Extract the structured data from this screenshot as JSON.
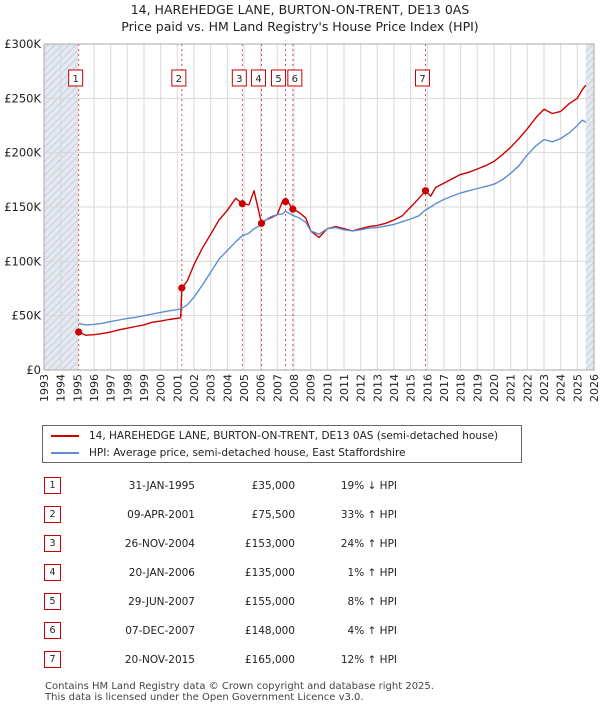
{
  "header": {
    "line1": "14, HAREHEDGE LANE, BURTON-ON-TRENT, DE13 0AS",
    "line2": "Price paid vs. HM Land Registry's House Price Index (HPI)"
  },
  "colors": {
    "property": "#cc0000",
    "hpi": "#5b8fd0",
    "shade": "#e4e8f0",
    "grid": "#d9d9d9"
  },
  "chart_data": {
    "type": "line",
    "title": "Price paid vs. HM Land Registry's House Price Index (HPI)",
    "xlabel": "",
    "ylabel": "",
    "xlim": [
      1993,
      2026
    ],
    "ylim": [
      0,
      300000
    ],
    "shaded_x_ranges": [
      [
        1993,
        1995
      ],
      [
        2025.5,
        2026
      ]
    ],
    "y_ticks": [
      {
        "value": 0,
        "label": "£0"
      },
      {
        "value": 50000,
        "label": "£50K"
      },
      {
        "value": 100000,
        "label": "£100K"
      },
      {
        "value": 150000,
        "label": "£150K"
      },
      {
        "value": 200000,
        "label": "£200K"
      },
      {
        "value": 250000,
        "label": "£250K"
      },
      {
        "value": 300000,
        "label": "£300K"
      }
    ],
    "x_ticks": [
      "1993",
      "1994",
      "1995",
      "1996",
      "1997",
      "1998",
      "1999",
      "2000",
      "2001",
      "2002",
      "2003",
      "2004",
      "2005",
      "2006",
      "2007",
      "2008",
      "2009",
      "2010",
      "2011",
      "2012",
      "2013",
      "2014",
      "2015",
      "2016",
      "2017",
      "2018",
      "2019",
      "2020",
      "2021",
      "2022",
      "2023",
      "2024",
      "2025",
      "2026"
    ],
    "series": [
      {
        "name": "14, HAREHEDGE LANE, BURTON-ON-TRENT, DE13 0AS (semi-detached house)",
        "color": "#cc0000",
        "x": [
          1995.08,
          1995.5,
          1996,
          1996.5,
          1997,
          1997.5,
          1998,
          1998.5,
          1999,
          1999.5,
          2000,
          2000.5,
          2001.2,
          2001.27,
          2001.6,
          2002,
          2002.5,
          2003,
          2003.5,
          2004,
          2004.5,
          2004.9,
          2005.3,
          2005.6,
          2006.05,
          2006.3,
          2006.6,
          2007,
          2007.3,
          2007.5,
          2007.93,
          2008.3,
          2008.7,
          2009,
          2009.5,
          2010,
          2010.5,
          2011,
          2011.5,
          2012,
          2012.5,
          2013,
          2013.5,
          2014,
          2014.5,
          2015,
          2015.5,
          2015.89,
          2016.2,
          2016.5,
          2017,
          2017.5,
          2018,
          2018.5,
          2019,
          2019.5,
          2020,
          2020.5,
          2021,
          2021.5,
          2022,
          2022.5,
          2023,
          2023.5,
          2024,
          2024.5,
          2025,
          2025.3,
          2025.5
        ],
        "values": [
          35000,
          32000,
          32500,
          33500,
          35000,
          37000,
          38500,
          40000,
          41500,
          44000,
          45000,
          46500,
          48000,
          75500,
          82000,
          97000,
          112000,
          125000,
          138000,
          147000,
          158000,
          153000,
          152000,
          165000,
          135000,
          138000,
          140000,
          143000,
          155000,
          158000,
          148000,
          145000,
          140000,
          128000,
          122000,
          130000,
          132000,
          130000,
          128000,
          130000,
          132000,
          133000,
          135000,
          138000,
          142000,
          150000,
          158000,
          165000,
          160000,
          168000,
          172000,
          176000,
          180000,
          182000,
          185000,
          188000,
          192000,
          198000,
          205000,
          213000,
          222000,
          232000,
          240000,
          236000,
          238000,
          245000,
          250000,
          258000,
          262000
        ]
      },
      {
        "name": "HPI: Average price, semi-detached house, East Staffordshire",
        "color": "#5b8fd0",
        "x": [
          1995.08,
          1995.5,
          1996,
          1996.5,
          1997,
          1997.5,
          1998,
          1998.5,
          1999,
          1999.5,
          2000,
          2000.5,
          2001,
          2001.27,
          2001.6,
          2002,
          2002.5,
          2003,
          2003.5,
          2004,
          2004.5,
          2004.9,
          2005.3,
          2005.6,
          2006.05,
          2006.3,
          2006.6,
          2007,
          2007.3,
          2007.5,
          2007.93,
          2008.3,
          2008.7,
          2009,
          2009.5,
          2010,
          2010.5,
          2011,
          2011.5,
          2012,
          2012.5,
          2013,
          2013.5,
          2014,
          2014.5,
          2015,
          2015.5,
          2015.89,
          2016.2,
          2016.5,
          2017,
          2017.5,
          2018,
          2018.5,
          2019,
          2019.5,
          2020,
          2020.5,
          2021,
          2021.5,
          2022,
          2022.5,
          2023,
          2023.5,
          2024,
          2024.5,
          2025,
          2025.3,
          2025.5
        ],
        "values": [
          43000,
          41500,
          42000,
          43000,
          44500,
          46000,
          47500,
          48500,
          50000,
          51500,
          53000,
          54500,
          55500,
          56800,
          60000,
          67000,
          78000,
          90000,
          102000,
          110000,
          118000,
          123500,
          126000,
          130000,
          133700,
          138000,
          141000,
          143000,
          143500,
          146000,
          142300,
          140000,
          136000,
          128000,
          125000,
          130000,
          131000,
          129000,
          128000,
          129000,
          130500,
          131000,
          132500,
          134000,
          136500,
          139000,
          142000,
          147300,
          150000,
          153000,
          157000,
          160000,
          163000,
          165000,
          167000,
          169000,
          171000,
          175000,
          181000,
          188000,
          198000,
          206000,
          212000,
          210000,
          213000,
          218000,
          225000,
          230000,
          228000
        ]
      }
    ],
    "sales": [
      {
        "n": "1",
        "x": 1995.08,
        "value": 35000,
        "date": "31-JAN-1995",
        "price": "£35,000",
        "hpi": "19% ↓ HPI"
      },
      {
        "n": "2",
        "x": 2001.27,
        "value": 75500,
        "date": "09-APR-2001",
        "price": "£75,500",
        "hpi": "33% ↑ HPI"
      },
      {
        "n": "3",
        "x": 2004.9,
        "value": 153000,
        "date": "26-NOV-2004",
        "price": "£153,000",
        "hpi": "24% ↑ HPI"
      },
      {
        "n": "4",
        "x": 2006.05,
        "value": 135000,
        "date": "20-JAN-2006",
        "price": "£135,000",
        "hpi": "1% ↑ HPI"
      },
      {
        "n": "5",
        "x": 2007.49,
        "value": 155000,
        "date": "29-JUN-2007",
        "price": "£155,000",
        "hpi": "8% ↑ HPI"
      },
      {
        "n": "6",
        "x": 2007.93,
        "value": 148000,
        "date": "07-DEC-2007",
        "price": "£148,000",
        "hpi": "4% ↑ HPI"
      },
      {
        "n": "7",
        "x": 2015.89,
        "value": 165000,
        "date": "20-NOV-2015",
        "price": "£165,000",
        "hpi": "12% ↑ HPI"
      }
    ]
  },
  "legend": {
    "property": "14, HAREHEDGE LANE, BURTON-ON-TRENT, DE13 0AS (semi-detached house)",
    "hpi": "HPI: Average price, semi-detached house, East Staffordshire"
  },
  "footer": {
    "line1": "Contains HM Land Registry data © Crown copyright and database right 2025.",
    "line2": "This data is licensed under the Open Government Licence v3.0."
  }
}
